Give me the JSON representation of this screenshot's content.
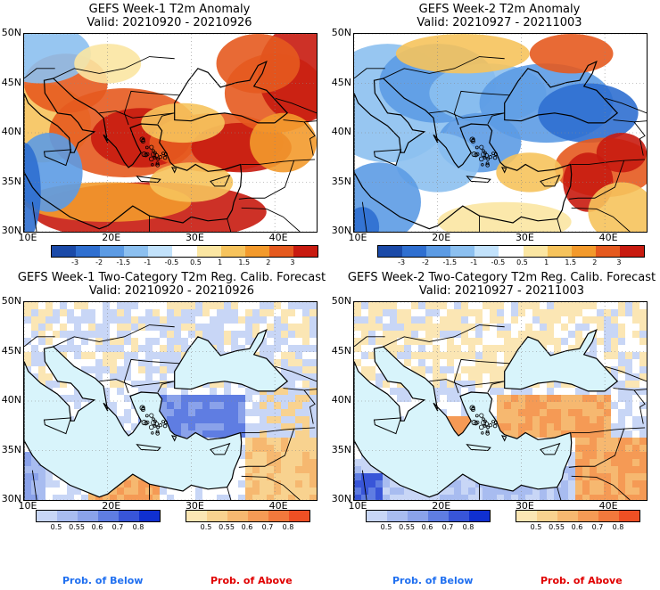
{
  "panels": [
    {
      "title": "GEFS Week-1 T2m Anomaly",
      "valid": "Valid: 20210920 - 20210926",
      "kind": "anom"
    },
    {
      "title": "GEFS Week-2 T2m Anomaly",
      "valid": "Valid: 20210927 - 20211003",
      "kind": "anom"
    },
    {
      "title": "GEFS Week-1 Two-Category T2m Reg. Calib. Forecast",
      "valid": "Valid: 20210920 - 20210926",
      "kind": "prob"
    },
    {
      "title": "GEFS Week-2 Two-Category T2m Reg. Calib. Forecast",
      "valid": "Valid: 20210927 - 20211003",
      "kind": "prob"
    }
  ],
  "lat_labels": [
    "50N",
    "45N",
    "40N",
    "35N",
    "30N"
  ],
  "lon_labels": [
    "10E",
    "20E",
    "30E",
    "40E"
  ],
  "anomaly_colorbar": {
    "labels": [
      "-3",
      "-2",
      "-1.5",
      "-1",
      "-0.5",
      "0.5",
      "1",
      "1.5",
      "2",
      "3"
    ],
    "colors": [
      "#1b4aa8",
      "#2f6fd0",
      "#5c9be4",
      "#8cc0f0",
      "#c2e2fb",
      "#ffffff",
      "#fbe6a2",
      "#f6c35c",
      "#f39a2c",
      "#e55a1f",
      "#c81b10"
    ]
  },
  "prob_below_colorbar": {
    "labels": [
      "0.5",
      "0.55",
      "0.6",
      "0.7",
      "0.8"
    ],
    "colors": [
      "#c8d6f6",
      "#a8bcf0",
      "#8aa2ea",
      "#5f7de2",
      "#3855d8",
      "#1030d0"
    ]
  },
  "prob_above_colorbar": {
    "labels": [
      "0.5",
      "0.55",
      "0.6",
      "0.7",
      "0.8"
    ],
    "colors": [
      "#fbe6b4",
      "#f8d28f",
      "#f6b870",
      "#f59a55",
      "#f2783c",
      "#ee4f24"
    ]
  },
  "legend": {
    "below": "Prob. of Below",
    "above": "Prob. of Above",
    "below_color": "#1f6ff0",
    "above_color": "#e00000"
  },
  "ocean_color": "#d8f4fb"
}
